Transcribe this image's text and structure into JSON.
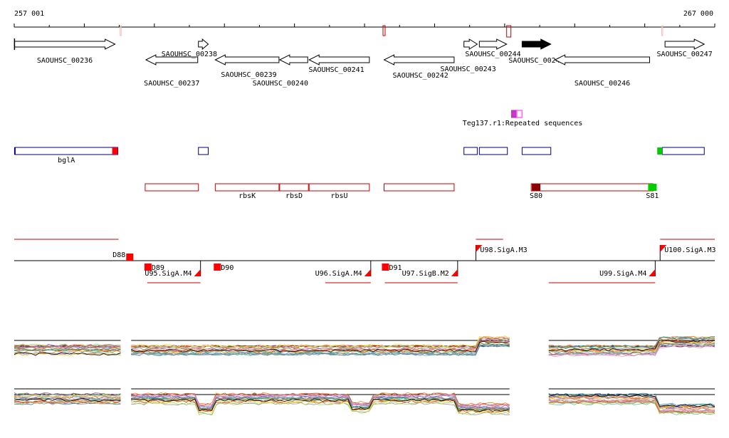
{
  "ruler": {
    "start_label": "257 001",
    "end_label": "267 000",
    "start": 257001,
    "end": 267000
  },
  "genes": [
    {
      "name": "SAOUHSC_00236",
      "start": 257005,
      "end": 258440,
      "strand": "+",
      "row": 0
    },
    {
      "name": "SAOUHSC_00237",
      "start": 258880,
      "end": 259620,
      "strand": "-",
      "row": 1
    },
    {
      "name": "SAOUHSC_00238",
      "start": 259630,
      "end": 259770,
      "strand": "+",
      "row": 0
    },
    {
      "name": "SAOUHSC_00239",
      "start": 259870,
      "end": 260780,
      "strand": "-",
      "row": 1
    },
    {
      "name": "SAOUHSC_00240",
      "start": 260790,
      "end": 261190,
      "strand": "-",
      "row": 1
    },
    {
      "name": "SAOUHSC_00241",
      "start": 261210,
      "end": 262070,
      "strand": "-",
      "row": 1
    },
    {
      "name": "SAOUHSC_00242",
      "start": 262280,
      "end": 263280,
      "strand": "-",
      "row": 1
    },
    {
      "name": "SAOUHSC_00243",
      "start": 263420,
      "end": 263610,
      "strand": "+",
      "row": 0
    },
    {
      "name": "SAOUHSC_00244",
      "start": 263640,
      "end": 264030,
      "strand": "+",
      "row": 0
    },
    {
      "name": "SAOUHSC_00245",
      "start": 264250,
      "end": 264660,
      "strand": "+",
      "row": 0,
      "filled": true
    },
    {
      "name": "SAOUHSC_00246",
      "start": 264720,
      "end": 266070,
      "strand": "-",
      "row": 1
    },
    {
      "name": "SAOUHSC_00247",
      "start": 266290,
      "end": 266850,
      "strand": "+",
      "row": 0
    }
  ],
  "repeat": {
    "label": "Teg137.r1:Repeated sequences",
    "start": 264100,
    "end": 264250
  },
  "annot_blue": [
    {
      "name": "bglA",
      "start": 257010,
      "end": 258480,
      "cap_right": "#ff0000",
      "cap_left_line": true
    },
    {
      "name": "",
      "start": 259630,
      "end": 259770
    },
    {
      "name": "",
      "start": 263420,
      "end": 263610
    },
    {
      "name": "",
      "start": 263640,
      "end": 264040
    },
    {
      "name": "",
      "start": 264250,
      "end": 264660
    },
    {
      "name": "",
      "start": 266250,
      "end": 266850,
      "cap_left": "#00cc00"
    }
  ],
  "annot_red": [
    {
      "name": "",
      "start": 258870,
      "end": 259630
    },
    {
      "name": "rbsK",
      "start": 259870,
      "end": 260780
    },
    {
      "name": "rbsD",
      "start": 260790,
      "end": 261200
    },
    {
      "name": "rbsU",
      "start": 261210,
      "end": 262070
    },
    {
      "name": "",
      "start": 262280,
      "end": 263280
    },
    {
      "name": "",
      "start": 264380,
      "end": 266120
    }
  ],
  "tss_marks": [
    {
      "name": "S80",
      "pos": 264450,
      "color": "#8b0000"
    },
    {
      "name": "S81",
      "pos": 266110,
      "color": "#00cc00"
    }
  ],
  "operons": [
    {
      "name": "D88",
      "pos": 258650,
      "side": "top",
      "kind": "box"
    },
    {
      "name": "D89",
      "pos": 258910,
      "side": "bottom",
      "kind": "box"
    },
    {
      "name": "D90",
      "pos": 259900,
      "side": "bottom",
      "kind": "box"
    },
    {
      "name": "D91",
      "pos": 262300,
      "side": "bottom",
      "kind": "box"
    },
    {
      "name": "U95.SigA.M4",
      "pos": 259660,
      "side": "bottom",
      "kind": "flag"
    },
    {
      "name": "U96.SigA.M4",
      "pos": 262090,
      "side": "bottom",
      "kind": "flag"
    },
    {
      "name": "U97.SigB.M2",
      "pos": 263330,
      "side": "bottom",
      "kind": "flag"
    },
    {
      "name": "U98.SigA.M3",
      "pos": 263590,
      "side": "top",
      "kind": "flag"
    },
    {
      "name": "U99.SigA.M4",
      "pos": 266150,
      "side": "bottom",
      "kind": "flag"
    },
    {
      "name": "U100.SigA.M3",
      "pos": 266220,
      "side": "top",
      "kind": "flag"
    }
  ],
  "operon_lines": [
    {
      "start": 257001,
      "end": 258490,
      "side": "top"
    },
    {
      "start": 258900,
      "end": 259660,
      "side": "bottom"
    },
    {
      "start": 261440,
      "end": 262090,
      "side": "bottom"
    },
    {
      "start": 262290,
      "end": 263330,
      "side": "bottom"
    },
    {
      "start": 263590,
      "end": 263980,
      "side": "top"
    },
    {
      "start": 264630,
      "end": 266150,
      "side": "bottom"
    },
    {
      "start": 266220,
      "end": 267000,
      "side": "top"
    }
  ],
  "expression_panels": [
    {
      "segments": [
        [
          257001,
          258520
        ],
        [
          258670,
          264070
        ],
        [
          264630,
          267000
        ]
      ]
    },
    {
      "segments": [
        [
          257001,
          258520
        ],
        [
          258670,
          264070
        ],
        [
          264630,
          267000
        ]
      ]
    }
  ],
  "colors": {
    "gene_stroke": "#000000",
    "blue": "#000080",
    "red": "#cc0000",
    "repeat_a": "#cc33cc",
    "repeat_b": "#ff66ff"
  }
}
